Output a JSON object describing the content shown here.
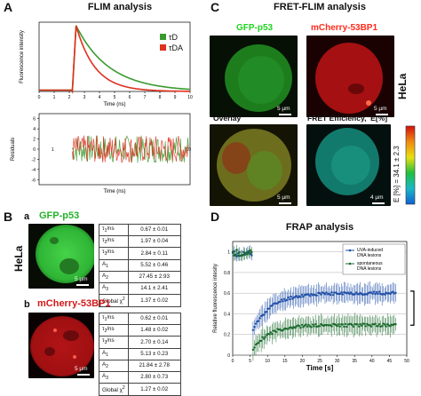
{
  "figure": {
    "panel_a": {
      "letter": "A",
      "title": "FLIM analysis",
      "chart_data": {
        "type": "line",
        "title": "FLIM analysis",
        "xlabel": "Time (ns)",
        "ylabel": "Fluorescence intensity",
        "xlim": [
          0,
          10
        ],
        "x_ticks": [
          "0",
          "1",
          "2",
          "3",
          "4",
          "5",
          "6",
          "7",
          "8",
          "9",
          "10"
        ],
        "legend_placement": "top-right",
        "series": [
          {
            "name": "τD",
            "color": "#3a9a2e",
            "rise_ns": 2.2,
            "peak": 1.0,
            "tau_ns": 2.2
          },
          {
            "name": "τDA",
            "color": "#e0301e",
            "rise_ns": 2.2,
            "peak": 1.0,
            "tau_ns": 1.25
          }
        ]
      },
      "residuals": {
        "ylabel": "Residuals",
        "xlabel": "Time (ns)",
        "y_ticks": [
          "6",
          "4",
          "2",
          "0",
          "-2",
          "-4",
          "-6"
        ],
        "y_values": [
          6,
          4,
          2,
          0,
          -2,
          -4,
          -6
        ],
        "ylim": [
          -7,
          7
        ],
        "xlim": [
          0,
          10
        ],
        "x_ticks": [
          "1",
          "10"
        ],
        "x_tick_values": [
          0.9,
          9.9
        ],
        "colors": [
          "#3a9a2e",
          "#e0301e"
        ]
      }
    },
    "panel_b": {
      "letter": "B",
      "cell_line": "HeLa",
      "sub_a": {
        "letter": "a",
        "label": "GFP-p53",
        "label_color": "#26b22a",
        "scale": "5 µm",
        "rows": [
          {
            "name": "τ1/ns",
            "value": "0.67 ± 0.01"
          },
          {
            "name": "τ2/ns",
            "value": "1.97 ± 0.04"
          },
          {
            "name": "τ3/ns",
            "value": "2.84 ± 0.11"
          },
          {
            "name": "A1",
            "value": "5.52 ± 0.46"
          },
          {
            "name": "A2",
            "value": "27.45 ± 2.93"
          },
          {
            "name": "A3",
            "value": "14.1 ± 2.41"
          },
          {
            "name": "Global χ2",
            "value": "1.37 ± 0.02"
          }
        ]
      },
      "sub_b": {
        "letter": "b",
        "label": "mCherry-53BP1",
        "label_color": "#d4181a",
        "scale": "5 µm",
        "rows": [
          {
            "name": "τ1/ns",
            "value": "0.62 ± 0.01"
          },
          {
            "name": "τ2/ns",
            "value": "1.48 ± 0.02"
          },
          {
            "name": "τ3/ns",
            "value": "2.70 ± 0.14"
          },
          {
            "name": "A1",
            "value": "5.13 ± 0.23"
          },
          {
            "name": "A2",
            "value": "21.84 ± 2.78"
          },
          {
            "name": "A3",
            "value": "2.80 ± 0.73"
          },
          {
            "name": "Global χ2",
            "value": "1.27 ± 0.02"
          }
        ]
      }
    },
    "panel_c": {
      "letter": "C",
      "title": "FRET-FLIM analysis",
      "cell_line": "HeLa",
      "images": [
        {
          "label": "GFP-p53",
          "label_color": "#1fd41f",
          "scale": "5 µm"
        },
        {
          "label": "mCherry-53BP1",
          "label_color": "#ff2a1a",
          "scale": "5 µm"
        },
        {
          "label": "Overlay",
          "label_color": "#111111",
          "scale": "5 µm"
        },
        {
          "label": "FRET Efficiency,  E[%]",
          "label_color": "#111111",
          "scale": "4 µm"
        }
      ],
      "colorbar_label": "E [%] = 34.1 ± 2.3"
    },
    "panel_d": {
      "letter": "D",
      "title": "FRAP analysis",
      "chart_data": {
        "type": "scatter",
        "title": "FRAP analysis",
        "xlabel": "Time [s]",
        "ylabel": "Relative fluorescence intesity",
        "xlim": [
          0,
          50
        ],
        "ylim": [
          0,
          1.1
        ],
        "x_ticks": [
          "0",
          "5",
          "10",
          "15",
          "20",
          "25",
          "30",
          "35",
          "40",
          "45",
          "50"
        ],
        "y_ticks": [
          "0",
          "0.2",
          "0.4",
          "0.6",
          "0.8",
          "1"
        ],
        "grid": true,
        "legend_placement": "top-right",
        "series": [
          {
            "name": "UVA-induced DNA lesions",
            "color": "#1f4fa8",
            "pre_bleach": 0.98,
            "post_bleach_start": 0.22,
            "plateau": 0.6,
            "k": 0.12
          },
          {
            "name": "spontaneous DNA lesions",
            "color": "#1c6b2e",
            "pre_bleach": 0.99,
            "post_bleach_start": 0.03,
            "plateau": 0.29,
            "k": 0.14
          }
        ],
        "bleach_time_s": 5.5
      }
    }
  }
}
